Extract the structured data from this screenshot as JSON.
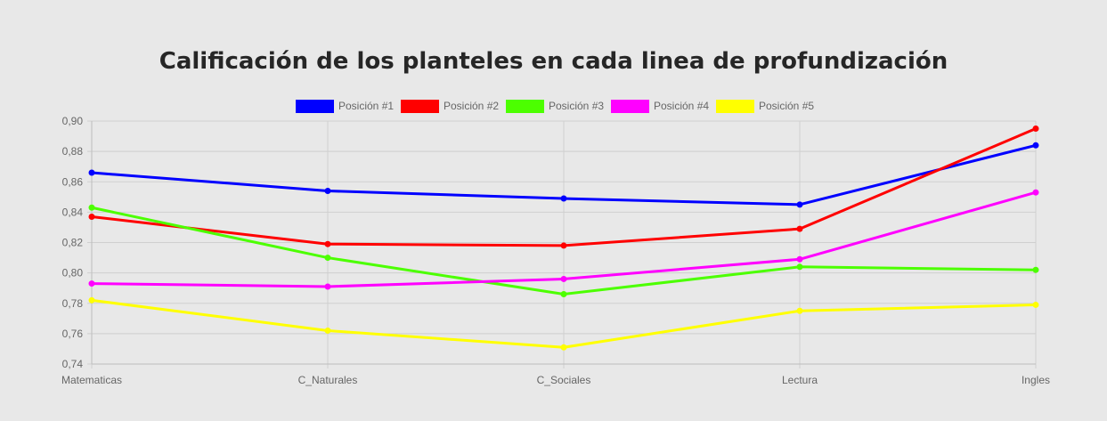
{
  "chart_data": {
    "type": "line",
    "title": "Calificación de los planteles en cada linea de profundización",
    "categories": [
      "Matematicas",
      "C_Naturales",
      "C_Sociales",
      "Lectura",
      "Ingles"
    ],
    "ylim": [
      0.74,
      0.9
    ],
    "yticks": [
      "0,90",
      "0,88",
      "0,86",
      "0,84",
      "0,82",
      "0,80",
      "0,78",
      "0,76",
      "0,74"
    ],
    "ytick_values": [
      0.9,
      0.88,
      0.86,
      0.84,
      0.82,
      0.8,
      0.78,
      0.76,
      0.74
    ],
    "grid": true,
    "legend_position": "top",
    "series": [
      {
        "name": "Posición #1",
        "color": "#0000ff",
        "values": [
          0.866,
          0.854,
          0.849,
          0.845,
          0.884
        ]
      },
      {
        "name": "Posición #2",
        "color": "#ff0000",
        "values": [
          0.837,
          0.819,
          0.818,
          0.829,
          0.895
        ]
      },
      {
        "name": "Posición #3",
        "color": "#4cff00",
        "values": [
          0.843,
          0.81,
          0.786,
          0.804,
          0.802
        ]
      },
      {
        "name": "Posición #4",
        "color": "#ff00ff",
        "values": [
          0.793,
          0.791,
          0.796,
          0.809,
          0.853
        ]
      },
      {
        "name": "Posición #5",
        "color": "#ffff00",
        "values": [
          0.782,
          0.762,
          0.751,
          0.775,
          0.779
        ]
      }
    ]
  }
}
